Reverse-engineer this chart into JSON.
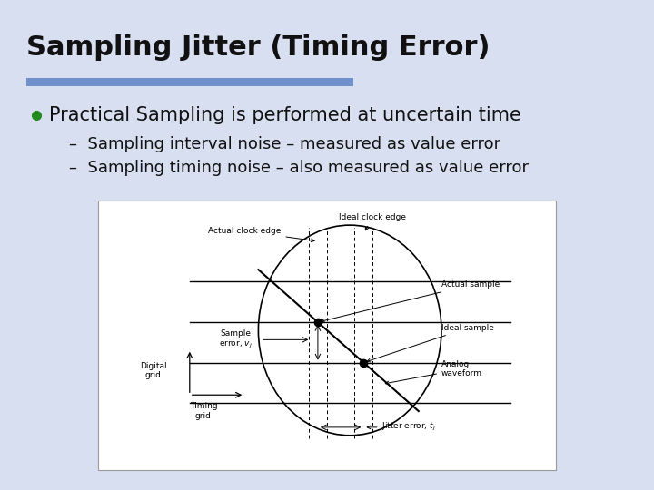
{
  "title": "Sampling Jitter (Timing Error)",
  "background_color": "#d8dff0",
  "title_color": "#111111",
  "title_fontsize": 22,
  "underline_color": "#7090cc",
  "bullet_color": "#228B22",
  "bullet_text": "Practical Sampling is performed at uncertain time",
  "bullet_fontsize": 15,
  "sub_bullets": [
    "Sampling interval noise – measured as value error",
    "Sampling timing noise – also measured as value error"
  ],
  "sub_bullet_fontsize": 13
}
